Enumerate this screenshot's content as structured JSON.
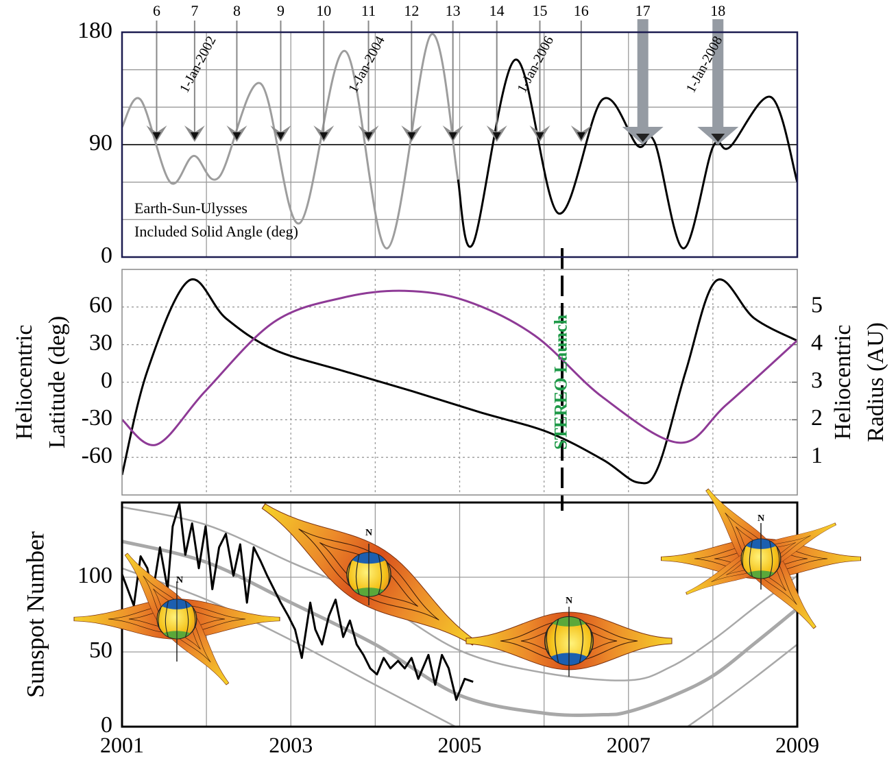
{
  "chart_data": [
    {
      "type": "line",
      "xlim": [
        2001,
        2009
      ],
      "ylim": [
        0,
        180
      ],
      "yticks": [
        0,
        90,
        180
      ],
      "minor_yticks": [
        30,
        60,
        120,
        150
      ],
      "minor_xticks": [
        2002,
        2003,
        2004,
        2005,
        2006,
        2007,
        2008
      ],
      "smooth": true,
      "series": [
        {
          "color": "#9d9d9d",
          "x": [
            2001,
            2001.22,
            2001.57,
            2001.85,
            2002.15,
            2002.64,
            2003.1,
            2003.64,
            2004.14,
            2004.66,
            2004.98
          ],
          "values": [
            104,
            126,
            60,
            81,
            64,
            139,
            27,
            165,
            7,
            178,
            62
          ]
        },
        {
          "color": "#000000",
          "x": [
            2004.98,
            2005.16,
            2005.66,
            2006.17,
            2006.69,
            2007.11,
            2007.31,
            2007.65,
            2008.0,
            2008.2,
            2008.69,
            2009.0
          ],
          "values": [
            62,
            11,
            158,
            35,
            126,
            89,
            92,
            7,
            88,
            88,
            128,
            60
          ]
        }
      ],
      "annotation": [
        "Earth-Sun-Ulysses",
        "Included Solid Angle (deg)"
      ],
      "date_labels": [
        {
          "x": 2002,
          "label": "1-Jan-2002"
        },
        {
          "x": 2004,
          "label": "1-Jan-2004"
        },
        {
          "x": 2006,
          "label": "1-Jan-2006"
        },
        {
          "x": 2008,
          "label": "1-Jan-2008"
        }
      ],
      "markers": [
        {
          "label": "6",
          "x": 2001.41
        },
        {
          "label": "7",
          "x": 2001.86
        },
        {
          "label": "8",
          "x": 2002.36
        },
        {
          "label": "9",
          "x": 2002.88
        },
        {
          "label": "10",
          "x": 2003.39
        },
        {
          "label": "11",
          "x": 2003.92
        },
        {
          "label": "12",
          "x": 2004.43
        },
        {
          "label": "13",
          "x": 2004.92
        },
        {
          "label": "14",
          "x": 2005.44
        },
        {
          "label": "15",
          "x": 2005.95
        },
        {
          "label": "16",
          "x": 2006.44
        },
        {
          "label": "17",
          "x": 2007.17,
          "emphasis": true
        },
        {
          "label": "18",
          "x": 2008.06,
          "emphasis": true
        }
      ]
    },
    {
      "type": "line",
      "xlim": [
        2001,
        2009
      ],
      "ylim": [
        -90,
        90
      ],
      "yticks": [
        -60,
        -30,
        0,
        30,
        60
      ],
      "y2lim": [
        0,
        6
      ],
      "y2ticks": [
        1,
        2,
        3,
        4,
        5
      ],
      "minor_xticks": [
        2002,
        2003,
        2004,
        2005,
        2006,
        2007,
        2008
      ],
      "smooth": true,
      "ylabel": [
        "Heliocentric",
        "Latitude (deg)"
      ],
      "y2label": [
        "Heliocentric",
        "Radius (AU)"
      ],
      "series": [
        {
          "color": "#000000",
          "x": [
            2001,
            2001.3,
            2001.79,
            2002.23,
            2002.8,
            2003.62,
            2004.43,
            2005.24,
            2006.05,
            2006.7,
            2007.11,
            2007.35,
            2007.68,
            2008.04,
            2008.49,
            2009.0
          ],
          "values": [
            -74,
            9,
            81,
            51,
            26,
            9,
            -7,
            -24,
            -40,
            -62,
            -80,
            -68,
            9,
            81,
            51,
            33
          ]
        },
        {
          "color": "#8e3a96",
          "axis": "y2",
          "x": [
            2001,
            2001.41,
            2001.99,
            2002.8,
            2003.62,
            2004.35,
            2005.08,
            2005.89,
            2006.7,
            2007.6,
            2008.16,
            2009.0
          ],
          "values": [
            2.0,
            1.34,
            2.77,
            4.6,
            5.25,
            5.43,
            5.16,
            4.24,
            2.59,
            1.39,
            2.4,
            4.11
          ]
        }
      ],
      "launch": {
        "text": "STEREO Launch",
        "x": 2006.22,
        "color": "#1f9a48"
      }
    },
    {
      "type": "line",
      "xlim": [
        2001,
        2009
      ],
      "ylim": [
        0,
        150
      ],
      "yticks": [
        0,
        50,
        100
      ],
      "xticks": [
        2001,
        2003,
        2005,
        2007,
        2009
      ],
      "minor_xticks": [
        2002,
        2004,
        2006,
        2008
      ],
      "ylabel": "Sunspot Number",
      "illustration_labels": [
        "N",
        "N",
        "N",
        "N"
      ],
      "series": [
        {
          "color": "#a8a8a8",
          "width": 5,
          "smooth": true,
          "x": [
            2001,
            2002,
            2003,
            2004,
            2005,
            2006,
            2006.7,
            2007,
            2007.5,
            2008,
            2008.5,
            2009
          ],
          "values": [
            124,
            110,
            83,
            55,
            21,
            9,
            8,
            10,
            20,
            34,
            56,
            79
          ]
        },
        {
          "color": "#a8a8a8",
          "width": 2.5,
          "smooth": true,
          "x": [
            2001,
            2002,
            2003,
            2004,
            2005,
            2006,
            2007,
            2007.5,
            2008,
            2008.5,
            2009
          ],
          "values": [
            147,
            135,
            110,
            85,
            51,
            36,
            31,
            40,
            58,
            80,
            101
          ]
        },
        {
          "color": "#a8a8a8",
          "width": 2.5,
          "smooth": true,
          "x": [
            2001,
            2002,
            2003,
            2004,
            2004.95,
            2006,
            2007.7,
            2008,
            2008.5,
            2009
          ],
          "values": [
            106,
            85,
            58,
            28,
            0,
            null,
            0,
            12,
            33,
            55
          ]
        },
        {
          "color": "#000000",
          "width": 3,
          "x": [
            2001.0,
            2001.14,
            2001.22,
            2001.3,
            2001.36,
            2001.45,
            2001.54,
            2001.6,
            2001.68,
            2001.75,
            2001.83,
            2001.91,
            2001.99,
            2002.07,
            2002.15,
            2002.23,
            2002.32,
            2002.4,
            2002.48,
            2002.56,
            2002.64,
            2002.72,
            2002.8,
            2002.88,
            2002.97,
            2003.05,
            2003.13,
            2003.23,
            2003.29,
            2003.37,
            2003.45,
            2003.53,
            2003.62,
            2003.7,
            2003.78,
            2003.86,
            2003.94,
            2004.02,
            2004.1,
            2004.18,
            2004.27,
            2004.35,
            2004.43,
            2004.51,
            2004.63,
            2004.71,
            2004.79,
            2004.87,
            2004.96,
            2005.06,
            2005.16
          ],
          "values": [
            102,
            81,
            114,
            106,
            88,
            120,
            92,
            134,
            149,
            115,
            136,
            106,
            134,
            92,
            120,
            129,
            101,
            122,
            83,
            120,
            111,
            101,
            92,
            83,
            74,
            65,
            46,
            83,
            65,
            55,
            74,
            85,
            60,
            71,
            55,
            48,
            39,
            35,
            46,
            39,
            44,
            39,
            46,
            32,
            48,
            28,
            48,
            39,
            18,
            32,
            30
          ]
        }
      ]
    }
  ]
}
